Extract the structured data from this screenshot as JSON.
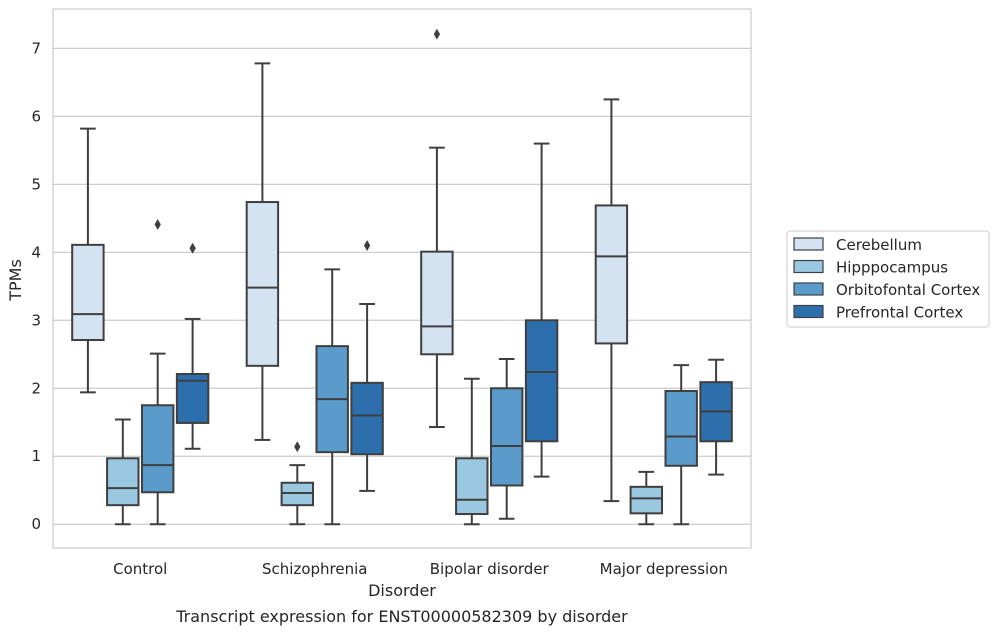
{
  "chart_data": {
    "type": "box",
    "caption": "Transcript expression for ENST00000582309 by disorder",
    "xlabel": "Disorder",
    "ylabel": "TPMs",
    "ylim": [
      -0.35,
      7.58
    ],
    "yticks": [
      0,
      1,
      2,
      3,
      4,
      5,
      6,
      7
    ],
    "grid": "horizontal",
    "legend_position": "right",
    "categories": [
      "Control",
      "Schizophrenia",
      "Bipolar disorder",
      "Major depression"
    ],
    "series": [
      {
        "name": "Cerebellum",
        "color": "#d4e3f2",
        "boxes": [
          {
            "whisker_low": 1.94,
            "q1": 2.71,
            "median": 3.09,
            "q3": 4.11,
            "whisker_high": 5.82,
            "outliers": []
          },
          {
            "whisker_low": 1.24,
            "q1": 2.33,
            "median": 3.48,
            "q3": 4.74,
            "whisker_high": 6.78,
            "outliers": []
          },
          {
            "whisker_low": 1.43,
            "q1": 2.5,
            "median": 2.91,
            "q3": 4.01,
            "whisker_high": 5.54,
            "outliers": [
              7.21
            ]
          },
          {
            "whisker_low": 0.34,
            "q1": 2.66,
            "median": 3.94,
            "q3": 4.69,
            "whisker_high": 6.25,
            "outliers": []
          }
        ]
      },
      {
        "name": "Hipppocampus",
        "color": "#9ac8e0",
        "boxes": [
          {
            "whisker_low": 0.0,
            "q1": 0.28,
            "median": 0.53,
            "q3": 0.97,
            "whisker_high": 1.54,
            "outliers": []
          },
          {
            "whisker_low": 0.0,
            "q1": 0.28,
            "median": 0.46,
            "q3": 0.61,
            "whisker_high": 0.87,
            "outliers": [
              1.14
            ]
          },
          {
            "whisker_low": 0.0,
            "q1": 0.15,
            "median": 0.36,
            "q3": 0.97,
            "whisker_high": 2.14,
            "outliers": []
          },
          {
            "whisker_low": 0.0,
            "q1": 0.16,
            "median": 0.38,
            "q3": 0.55,
            "whisker_high": 0.77,
            "outliers": []
          }
        ]
      },
      {
        "name": "Orbitofontal Cortex",
        "color": "#5a9bcc",
        "boxes": [
          {
            "whisker_low": 0.0,
            "q1": 0.47,
            "median": 0.87,
            "q3": 1.75,
            "whisker_high": 2.51,
            "outliers": [
              4.41
            ]
          },
          {
            "whisker_low": 0.0,
            "q1": 1.06,
            "median": 1.84,
            "q3": 2.62,
            "whisker_high": 3.75,
            "outliers": []
          },
          {
            "whisker_low": 0.08,
            "q1": 0.57,
            "median": 1.15,
            "q3": 2.0,
            "whisker_high": 2.43,
            "outliers": []
          },
          {
            "whisker_low": 0.0,
            "q1": 0.86,
            "median": 1.29,
            "q3": 1.96,
            "whisker_high": 2.34,
            "outliers": []
          }
        ]
      },
      {
        "name": "Prefrontal Cortex",
        "color": "#2d6eac",
        "boxes": [
          {
            "whisker_low": 1.11,
            "q1": 1.49,
            "median": 2.11,
            "q3": 2.21,
            "whisker_high": 3.02,
            "outliers": [
              4.06
            ]
          },
          {
            "whisker_low": 0.49,
            "q1": 1.03,
            "median": 1.6,
            "q3": 2.08,
            "whisker_high": 3.24,
            "outliers": [
              4.1
            ]
          },
          {
            "whisker_low": 0.7,
            "q1": 1.22,
            "median": 2.24,
            "q3": 3.0,
            "whisker_high": 5.6,
            "outliers": []
          },
          {
            "whisker_low": 0.73,
            "q1": 1.22,
            "median": 1.66,
            "q3": 2.09,
            "whisker_high": 2.42,
            "outliers": []
          }
        ]
      }
    ]
  }
}
